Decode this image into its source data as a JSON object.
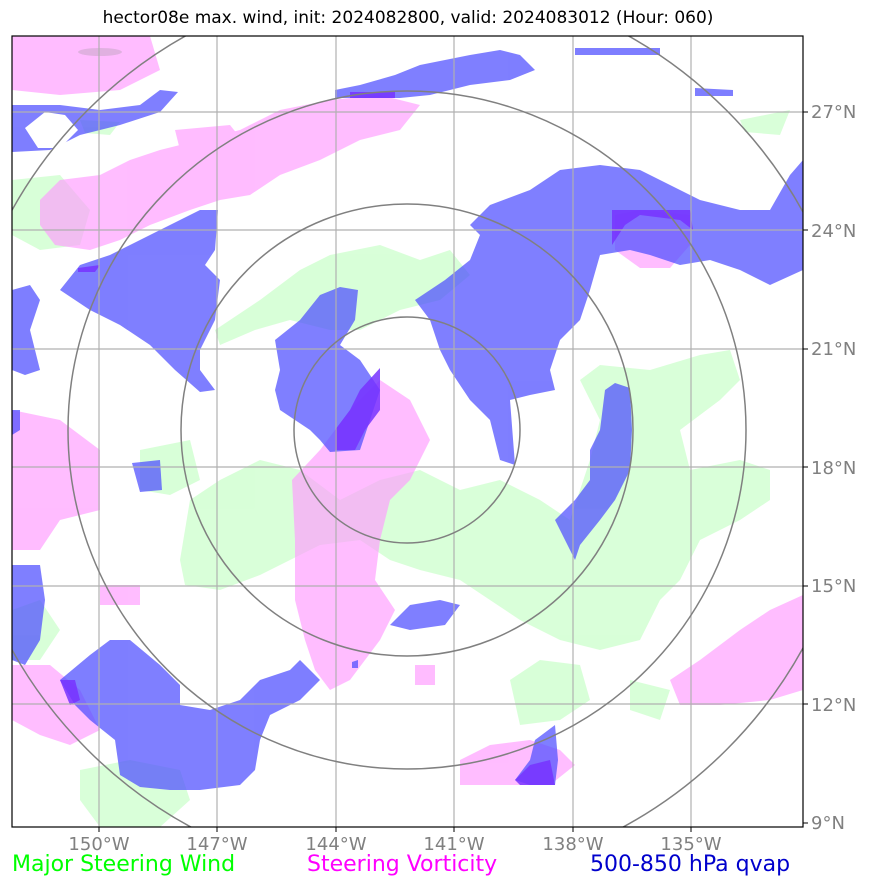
{
  "title": "hector08e max. wind, init: 2024082800, valid: 2024083012 (Hour: 060)",
  "legend": {
    "wind": {
      "label": "Major Steering Wind",
      "color": "#00ff00"
    },
    "vorticity": {
      "label": "Steering Vorticity",
      "color": "#ff00ff"
    },
    "qvap": {
      "label": "500-850 hPa qvap",
      "color": "#0000cc"
    }
  },
  "map": {
    "lat_labels": [
      "27°N",
      "24°N",
      "21°N",
      "18°N",
      "15°N",
      "12°N",
      "9°N"
    ],
    "lon_labels": [
      "150°W",
      "147°W",
      "144°W",
      "141°W",
      "138°W",
      "135°W"
    ],
    "colors": {
      "wind_fill": "#ccffcc",
      "vorticity_fill": "#ff99ff",
      "qvap_fill": "#4d4dff",
      "grid": "#b0b0b0",
      "rings": "#808080"
    }
  }
}
